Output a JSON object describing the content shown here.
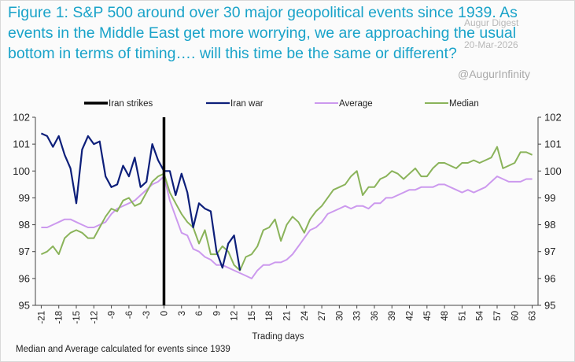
{
  "title_lines": [
    "Figure 1: S&P 500 around over 30 major geopolitical events since 1939. As",
    "events in the Middle East get more worrying, we are approaching the usual",
    "bottom in terms of timing…. will this time be the same or different?"
  ],
  "watermark": {
    "brand": "Augur Digest",
    "date": "20-Mar-2026",
    "handle": "@AugurInfinity"
  },
  "footnote": "Median and Average calculated for events since 1939",
  "colors": {
    "title": "#1aa3c9",
    "iran_strikes": "#000000",
    "iran_war": "#0d1f7a",
    "average": "#cc99ee",
    "median": "#8ab35a"
  },
  "chart_data": {
    "type": "line",
    "title": "S&P 500 around major geopolitical events",
    "xlabel": "Trading days",
    "ylabel": "",
    "xlim": [
      -22,
      64
    ],
    "ylim": [
      95,
      102
    ],
    "yticks": [
      95,
      96,
      97,
      98,
      99,
      100,
      101,
      102
    ],
    "xticks": [
      -21,
      -18,
      -15,
      -12,
      -9,
      -6,
      -3,
      0,
      3,
      6,
      9,
      12,
      15,
      18,
      21,
      24,
      27,
      30,
      33,
      36,
      39,
      42,
      45,
      48,
      51,
      54,
      57,
      60,
      63
    ],
    "legend": [
      "Iran strikes",
      "Iran war",
      "Average",
      "Median"
    ],
    "markers": [
      {
        "name": "Iran strikes",
        "x": 0
      }
    ],
    "series": [
      {
        "name": "Iran war",
        "x": [
          -21,
          -20,
          -19,
          -18,
          -17,
          -16,
          -15,
          -14,
          -13,
          -12,
          -11,
          -10,
          -9,
          -8,
          -7,
          -6,
          -5,
          -4,
          -3,
          -2,
          -1,
          0,
          1,
          2,
          3,
          4,
          5,
          6,
          7,
          8,
          9,
          10,
          11,
          12,
          13
        ],
        "values": [
          101.4,
          101.3,
          100.9,
          101.3,
          100.6,
          100.1,
          98.8,
          100.8,
          101.3,
          101.0,
          101.1,
          99.8,
          99.4,
          99.5,
          100.2,
          99.8,
          100.5,
          99.4,
          99.6,
          101.0,
          100.4,
          100.0,
          100.0,
          99.1,
          99.9,
          99.2,
          97.9,
          98.8,
          98.6,
          98.5,
          97.0,
          96.4,
          97.3,
          97.6,
          96.3
        ]
      },
      {
        "name": "Average",
        "x": [
          -21,
          -20,
          -19,
          -18,
          -17,
          -16,
          -15,
          -14,
          -13,
          -12,
          -11,
          -10,
          -9,
          -8,
          -7,
          -6,
          -5,
          -4,
          -3,
          -2,
          -1,
          0,
          1,
          2,
          3,
          4,
          5,
          6,
          7,
          8,
          9,
          10,
          11,
          12,
          13,
          14,
          15,
          16,
          17,
          18,
          19,
          20,
          21,
          22,
          23,
          24,
          25,
          26,
          27,
          28,
          29,
          30,
          31,
          32,
          33,
          34,
          35,
          36,
          37,
          38,
          39,
          40,
          41,
          42,
          43,
          44,
          45,
          46,
          47,
          48,
          49,
          50,
          51,
          52,
          53,
          54,
          55,
          56,
          57,
          58,
          59,
          60,
          61,
          62,
          63
        ],
        "values": [
          97.9,
          97.9,
          98.0,
          98.1,
          98.2,
          98.2,
          98.1,
          98.0,
          97.9,
          97.9,
          98.0,
          98.1,
          98.4,
          98.6,
          98.7,
          98.8,
          98.9,
          99.1,
          99.3,
          99.5,
          99.6,
          99.8,
          98.9,
          98.3,
          97.7,
          97.6,
          97.1,
          97.0,
          96.8,
          96.7,
          96.5,
          96.5,
          96.4,
          96.3,
          96.2,
          96.1,
          96.0,
          96.3,
          96.5,
          96.5,
          96.6,
          96.6,
          96.7,
          96.9,
          97.2,
          97.5,
          97.8,
          97.9,
          98.1,
          98.4,
          98.5,
          98.6,
          98.7,
          98.6,
          98.7,
          98.7,
          98.6,
          98.8,
          98.8,
          99.0,
          99.0,
          99.1,
          99.2,
          99.3,
          99.3,
          99.4,
          99.4,
          99.4,
          99.5,
          99.5,
          99.4,
          99.3,
          99.2,
          99.3,
          99.2,
          99.3,
          99.4,
          99.6,
          99.8,
          99.7,
          99.6,
          99.6,
          99.6,
          99.7,
          99.7
        ]
      },
      {
        "name": "Median",
        "x": [
          -21,
          -20,
          -19,
          -18,
          -17,
          -16,
          -15,
          -14,
          -13,
          -12,
          -11,
          -10,
          -9,
          -8,
          -7,
          -6,
          -5,
          -4,
          -3,
          -2,
          -1,
          0,
          1,
          2,
          3,
          4,
          5,
          6,
          7,
          8,
          9,
          10,
          11,
          12,
          13,
          14,
          15,
          16,
          17,
          18,
          19,
          20,
          21,
          22,
          23,
          24,
          25,
          26,
          27,
          28,
          29,
          30,
          31,
          32,
          33,
          34,
          35,
          36,
          37,
          38,
          39,
          40,
          41,
          42,
          43,
          44,
          45,
          46,
          47,
          48,
          49,
          50,
          51,
          52,
          53,
          54,
          55,
          56,
          57,
          58,
          59,
          60,
          61,
          62,
          63
        ],
        "values": [
          96.9,
          97.0,
          97.2,
          96.9,
          97.5,
          97.7,
          97.8,
          97.7,
          97.5,
          97.5,
          97.9,
          98.3,
          98.6,
          98.5,
          98.9,
          99.0,
          98.7,
          98.8,
          99.2,
          99.6,
          99.8,
          99.9,
          99.2,
          98.8,
          98.4,
          98.1,
          97.9,
          97.3,
          97.8,
          96.9,
          96.9,
          97.2,
          97.0,
          96.5,
          96.3,
          96.8,
          96.9,
          97.2,
          97.8,
          97.9,
          98.2,
          97.4,
          98.0,
          98.3,
          98.1,
          97.7,
          98.2,
          98.5,
          98.7,
          99.0,
          99.3,
          99.4,
          99.5,
          99.8,
          100.0,
          99.1,
          99.4,
          99.4,
          99.7,
          99.8,
          100.0,
          99.9,
          99.7,
          99.9,
          100.1,
          99.8,
          99.8,
          100.1,
          100.3,
          100.3,
          100.2,
          100.1,
          100.3,
          100.3,
          100.4,
          100.3,
          100.4,
          100.5,
          100.9,
          100.1,
          100.2,
          100.3,
          100.7,
          100.7,
          100.6
        ]
      }
    ]
  }
}
